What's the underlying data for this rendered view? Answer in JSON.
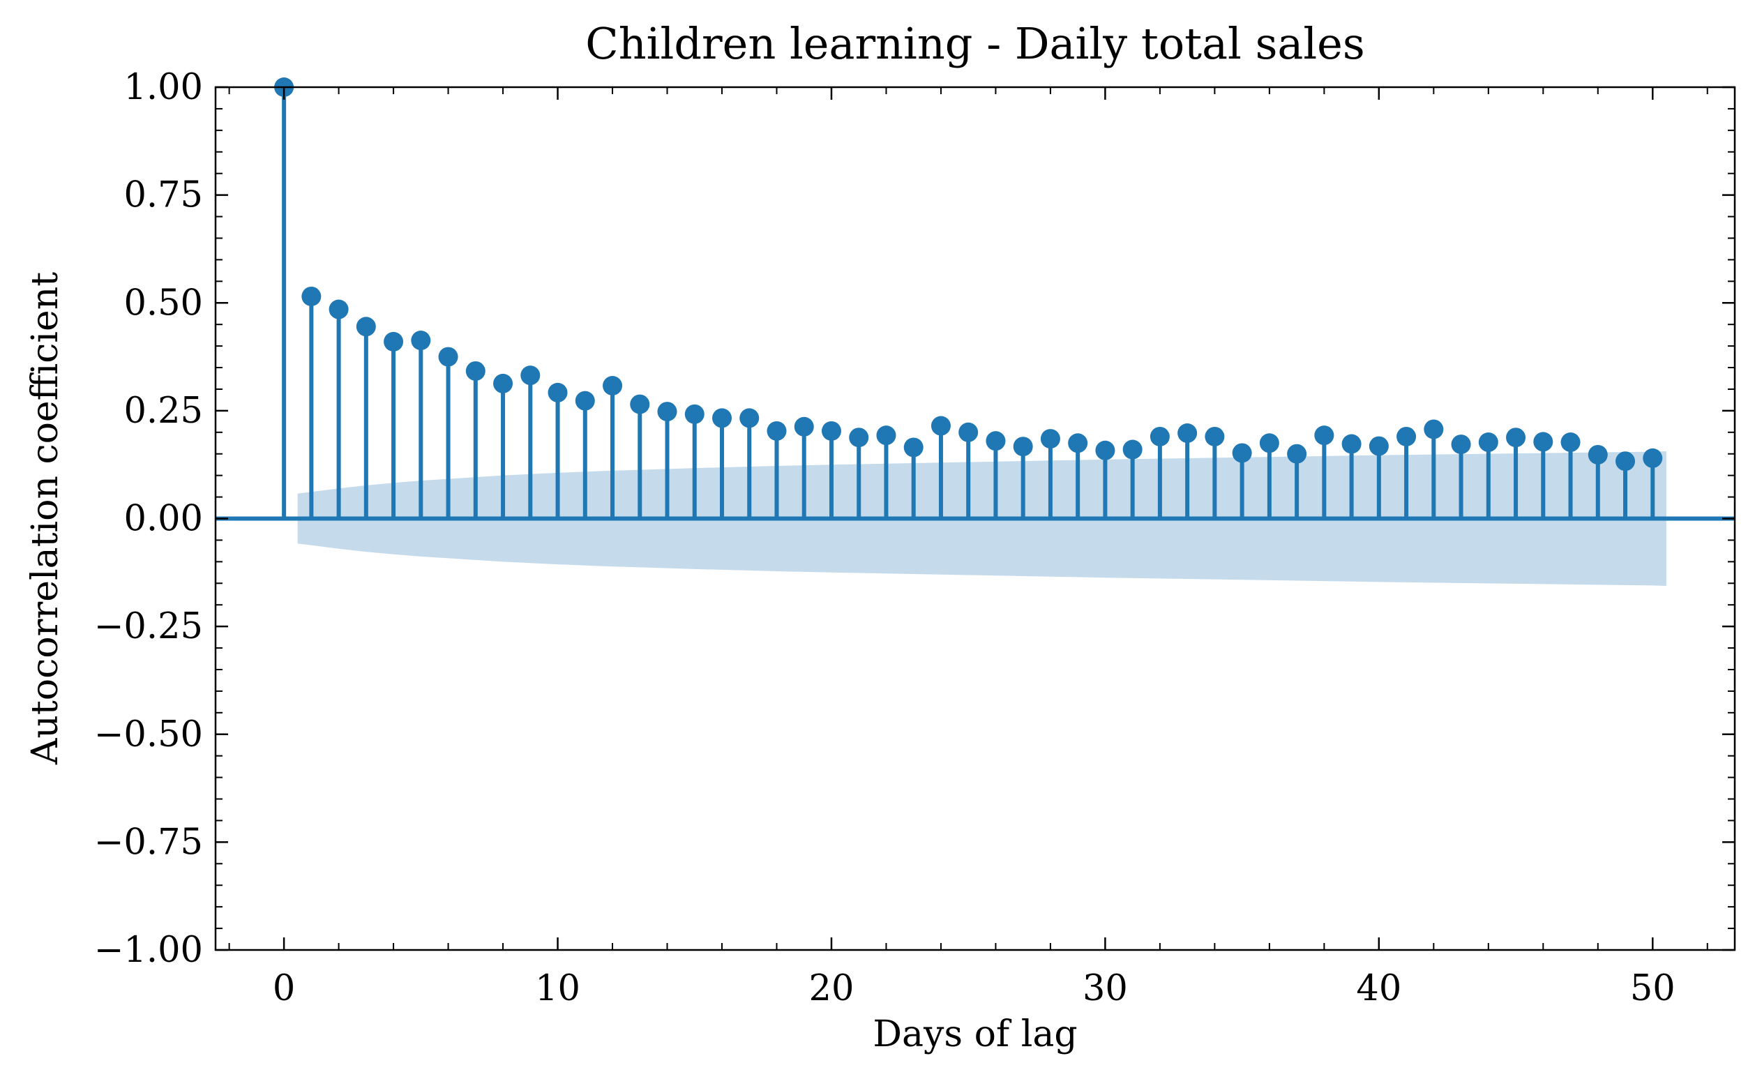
{
  "colors": {
    "stem": "#1f77b4",
    "marker": "#1f77b4",
    "baseline": "#1f77b4",
    "confidence_band": "#c5dbec",
    "axes": "#000000",
    "background": "#ffffff"
  },
  "chart_data": {
    "type": "stem",
    "title": "Children learning - Daily total sales",
    "xlabel": "Days of lag",
    "ylabel": "Autocorrelation coefficient",
    "xlim": [
      -2.5,
      53
    ],
    "ylim": [
      -1.0,
      1.0
    ],
    "x_ticks": [
      0,
      10,
      20,
      30,
      40,
      50
    ],
    "x_tick_labels": [
      "0",
      "10",
      "20",
      "30",
      "40",
      "50"
    ],
    "y_ticks": [
      1.0,
      0.75,
      0.5,
      0.25,
      0.0,
      -0.25,
      -0.5,
      -0.75,
      -1.0
    ],
    "y_tick_labels": [
      "1.00",
      "0.75",
      "0.50",
      "0.25",
      "0.00",
      "−0.25",
      "−0.50",
      "−0.75",
      "−1.00"
    ],
    "grid": false,
    "lags": [
      0,
      1,
      2,
      3,
      4,
      5,
      6,
      7,
      8,
      9,
      10,
      11,
      12,
      13,
      14,
      15,
      16,
      17,
      18,
      19,
      20,
      21,
      22,
      23,
      24,
      25,
      26,
      27,
      28,
      29,
      30,
      31,
      32,
      33,
      34,
      35,
      36,
      37,
      38,
      39,
      40,
      41,
      42,
      43,
      44,
      45,
      46,
      47,
      48,
      49,
      50
    ],
    "values": [
      1.0,
      0.515,
      0.485,
      0.445,
      0.41,
      0.413,
      0.375,
      0.342,
      0.313,
      0.332,
      0.292,
      0.273,
      0.308,
      0.265,
      0.248,
      0.242,
      0.233,
      0.233,
      0.203,
      0.213,
      0.203,
      0.188,
      0.193,
      0.165,
      0.215,
      0.2,
      0.18,
      0.167,
      0.185,
      0.175,
      0.158,
      0.16,
      0.19,
      0.198,
      0.19,
      0.152,
      0.175,
      0.15,
      0.193,
      0.173,
      0.168,
      0.19,
      0.207,
      0.172,
      0.177,
      0.188,
      0.178,
      0.177,
      0.148,
      0.133,
      0.14
    ],
    "confidence_band": {
      "lags": [
        0.5,
        1,
        2,
        3,
        4,
        5,
        6,
        7,
        8,
        10,
        12,
        15,
        18,
        20,
        25,
        30,
        35,
        40,
        45,
        50,
        50.5
      ],
      "upper": [
        0.058,
        0.062,
        0.07,
        0.077,
        0.083,
        0.088,
        0.092,
        0.096,
        0.1,
        0.106,
        0.111,
        0.117,
        0.122,
        0.125,
        0.131,
        0.137,
        0.142,
        0.147,
        0.151,
        0.155,
        0.156
      ],
      "lower": [
        -0.058,
        -0.062,
        -0.07,
        -0.077,
        -0.083,
        -0.088,
        -0.092,
        -0.096,
        -0.1,
        -0.106,
        -0.111,
        -0.117,
        -0.122,
        -0.125,
        -0.131,
        -0.137,
        -0.142,
        -0.147,
        -0.151,
        -0.155,
        -0.156
      ]
    }
  }
}
